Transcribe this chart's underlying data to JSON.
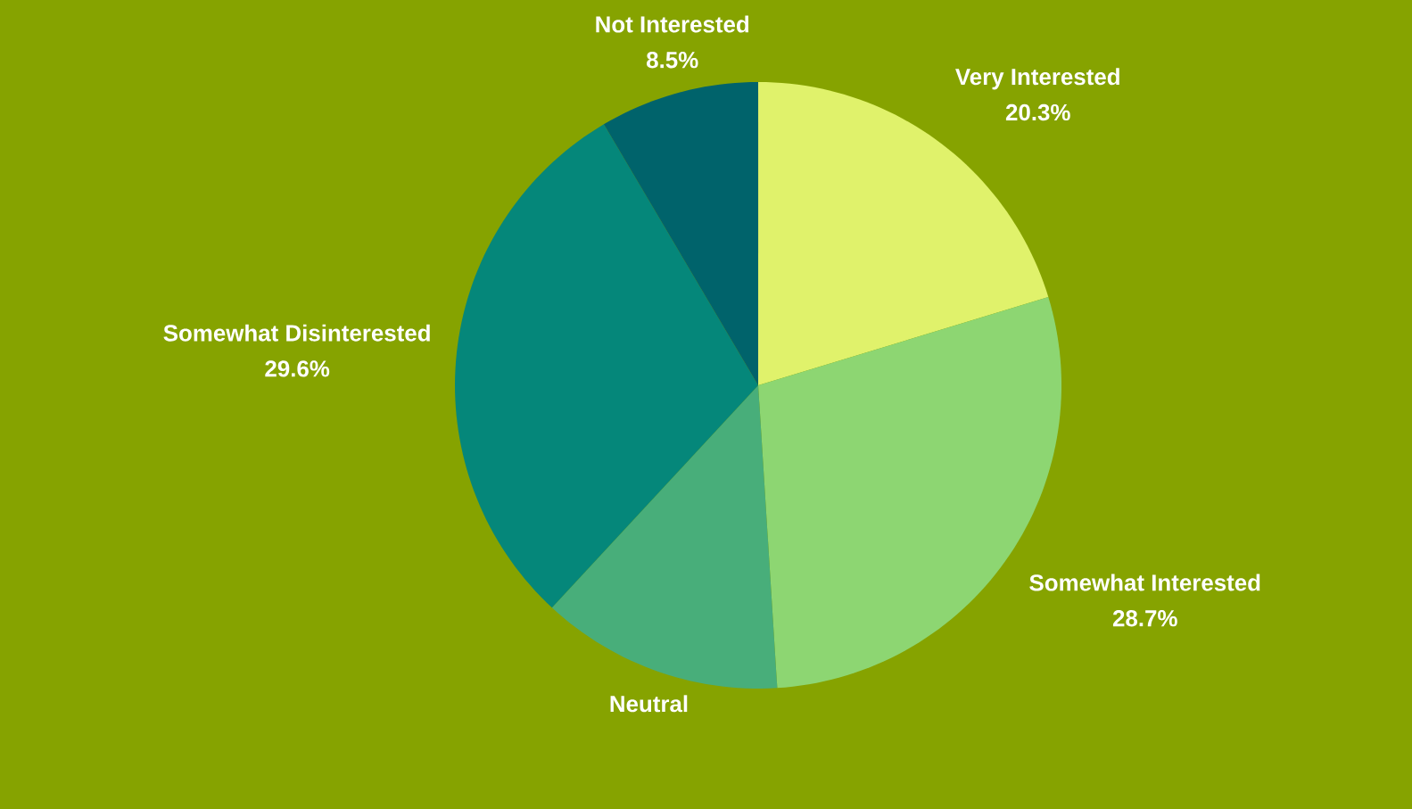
{
  "chart_data": {
    "type": "pie",
    "categories": [
      "Very Interested",
      "Somewhat Interested",
      "Neutral",
      "Somewhat Disinterested",
      "Not Interested"
    ],
    "values": [
      20.3,
      28.7,
      12.9,
      29.6,
      8.5
    ],
    "colors": [
      "#e0f26b",
      "#8dd672",
      "#48ae7a",
      "#05877a",
      "#00636b"
    ],
    "value_labels": [
      "20.3%",
      "28.7%",
      null,
      "29.6%",
      "8.5%"
    ]
  }
}
